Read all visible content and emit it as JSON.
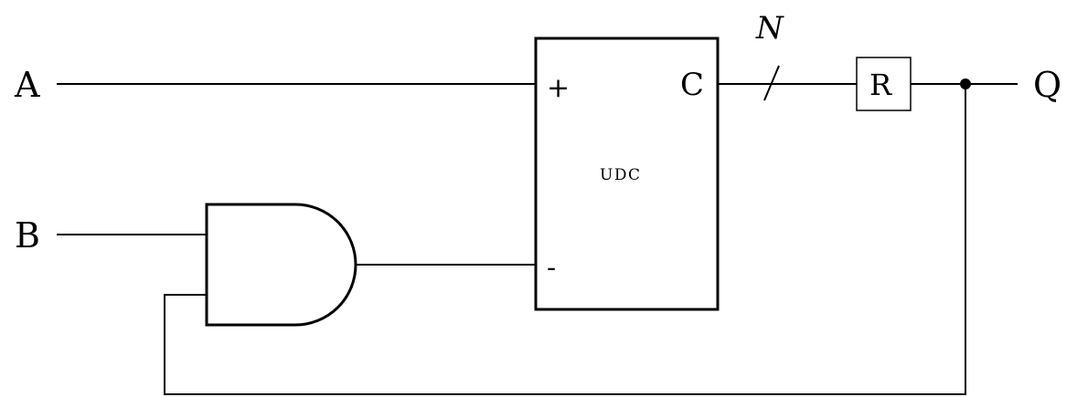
{
  "inputs": {
    "a": "A",
    "b": "B"
  },
  "output": {
    "q": "Q"
  },
  "counter": {
    "name": "UDC",
    "plus_port": "+",
    "minus_port": "-",
    "output_port": "C"
  },
  "bus": {
    "width_label": "N"
  },
  "register": {
    "label": "R"
  },
  "gate": {
    "type": "AND"
  }
}
